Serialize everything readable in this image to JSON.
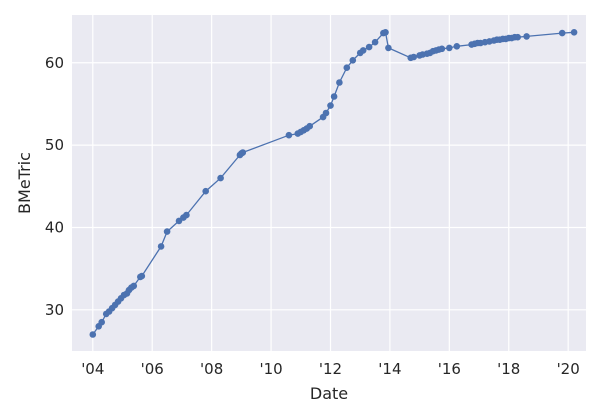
{
  "chart_data": {
    "type": "line",
    "title": "",
    "xlabel": "Date",
    "ylabel": "BMeTric",
    "xlim": [
      2003.3,
      2020.6
    ],
    "ylim": [
      25,
      65.8
    ],
    "x_ticks": [
      2004,
      2006,
      2008,
      2010,
      2012,
      2014,
      2016,
      2018,
      2020
    ],
    "x_tick_labels": [
      "'04",
      "'06",
      "'08",
      "'10",
      "'12",
      "'14",
      "'16",
      "'18",
      "'20"
    ],
    "y_ticks": [
      30,
      40,
      50,
      60
    ],
    "grid": true,
    "legend": "none",
    "colors": {
      "background": "#eaeaf2",
      "grid": "#ffffff",
      "line": "#4c72b0",
      "text": "#262626"
    },
    "series": [
      {
        "x": [
          2004.0,
          2004.2,
          2004.3,
          2004.45,
          2004.55,
          2004.65,
          2004.75,
          2004.85,
          2004.95,
          2005.05,
          2005.15,
          2005.22,
          2005.3,
          2005.38,
          2005.6,
          2005.65,
          2006.3,
          2006.5,
          2006.9,
          2007.05,
          2007.15,
          2007.8,
          2008.3,
          2008.95,
          2009.0,
          2009.05,
          2010.6,
          2010.9,
          2011.0,
          2011.1,
          2011.2,
          2011.3,
          2011.75,
          2011.85,
          2012.0,
          2012.12,
          2012.3,
          2012.55,
          2012.75,
          2013.0,
          2013.1,
          2013.3,
          2013.5,
          2013.78,
          2013.85,
          2013.95,
          2014.7,
          2014.8,
          2015.0,
          2015.1,
          2015.25,
          2015.35,
          2015.45,
          2015.55,
          2015.65,
          2015.75,
          2016.0,
          2016.25,
          2016.75,
          2016.85,
          2016.95,
          2017.05,
          2017.2,
          2017.35,
          2017.5,
          2017.6,
          2017.7,
          2017.8,
          2017.9,
          2018.0,
          2018.1,
          2018.2,
          2018.3,
          2018.6,
          2019.8,
          2020.2
        ],
        "values": [
          27.0,
          28.0,
          28.5,
          29.5,
          29.8,
          30.2,
          30.6,
          31.0,
          31.4,
          31.8,
          32.0,
          32.4,
          32.7,
          32.9,
          34.0,
          34.1,
          37.7,
          39.5,
          40.8,
          41.2,
          41.5,
          44.4,
          46.0,
          48.8,
          49.0,
          49.1,
          51.2,
          51.4,
          51.6,
          51.8,
          52.0,
          52.3,
          53.4,
          53.9,
          54.8,
          55.9,
          57.6,
          59.4,
          60.3,
          61.2,
          61.5,
          61.9,
          62.5,
          63.6,
          63.7,
          61.8,
          60.6,
          60.7,
          60.9,
          61.0,
          61.1,
          61.2,
          61.4,
          61.5,
          61.6,
          61.7,
          61.8,
          62.0,
          62.2,
          62.3,
          62.4,
          62.4,
          62.5,
          62.6,
          62.7,
          62.8,
          62.8,
          62.9,
          62.9,
          63.0,
          63.0,
          63.1,
          63.1,
          63.2,
          63.6,
          63.7
        ]
      }
    ]
  }
}
